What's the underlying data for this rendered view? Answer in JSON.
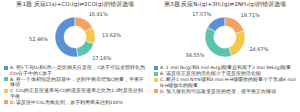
{
  "chart_data": [
    {
      "type": "pie",
      "title": "第1题 反应C(s)+CO₂(g)⇌2CO(g)的错误选项",
      "categories": [
        "A. 在S下与O₂和C作一定比例充分反应，C原子可以全部转化为CO₂分子中的C原子",
        "B. 在一个体积恒定的容器中，达到平衡后增加C的量，平衡不移动",
        "C. CO₂的正反应速率与CO的逆反应速率之比为1:2时反应达到平衡",
        "D. 该反应中CO₂为氧化剂，原子利用率未达到100%"
      ],
      "values": [
        52.46,
        17.18,
        13.62,
        16.91
      ],
      "value_labels": [
        "52.46%",
        "17.18%",
        "13.62%",
        "16.91%"
      ],
      "colors": [
        "#5b8fd6",
        "#5cc3ae",
        "#f2c94c",
        "#f4a261"
      ],
      "legend": "bottom",
      "data_labels": true
    },
    {
      "type": "pie",
      "title": "第3题 反应N₂(g)+3H₂(g)⇌2NH₃(g)的错误选项",
      "categories": [
        "A. 1 mol N₂(g)和3 mol H₂(g)能量总和高于2 mol NH₃(g)能量",
        "B. 该反应正反应的活化能小于逆反应的活化能",
        "C. 断开1 mol N≡N键和3 mol H-H键吸收的能量小于形成6 mol N-H键放出的能量",
        "D. 加入催化剂可以改变反应的焓变，使平衡正向移动"
      ],
      "values": [
        17.07,
        38.55,
        24.67,
        19.71
      ],
      "value_labels": [
        "17.07%",
        "38.55%",
        "24.67%",
        "19.71%"
      ],
      "colors": [
        "#5b8fd6",
        "#5cc3ae",
        "#f2c94c",
        "#f4a261"
      ],
      "legend": "bottom",
      "data_labels": true
    }
  ]
}
